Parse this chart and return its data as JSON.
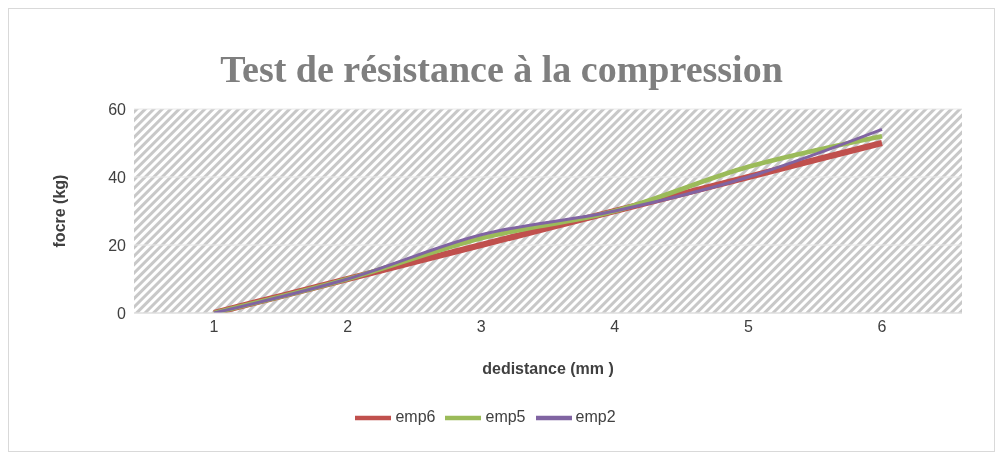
{
  "chart_data": {
    "type": "line",
    "title": "Test de résistance à la compression",
    "xlabel": "dedistance (mm )",
    "ylabel": "focre (kg)",
    "categories": [
      "1",
      "2",
      "3",
      "4",
      "5",
      "6"
    ],
    "series": [
      {
        "name": "emp6",
        "color": "#c0504d",
        "values": [
          0,
          10,
          20,
          30,
          40,
          50
        ]
      },
      {
        "name": "emp5",
        "color": "#9bbb59",
        "values": [
          0,
          10,
          22,
          30,
          43,
          52
        ]
      },
      {
        "name": "emp2",
        "color": "#8064a2",
        "values": [
          0,
          10,
          23,
          30,
          40,
          54
        ]
      }
    ],
    "ylim": [
      0,
      60
    ],
    "yticks": [
      0,
      20,
      40,
      60
    ],
    "grid": "y",
    "legend": "bottom",
    "marker": "none",
    "line_style": "solid"
  }
}
